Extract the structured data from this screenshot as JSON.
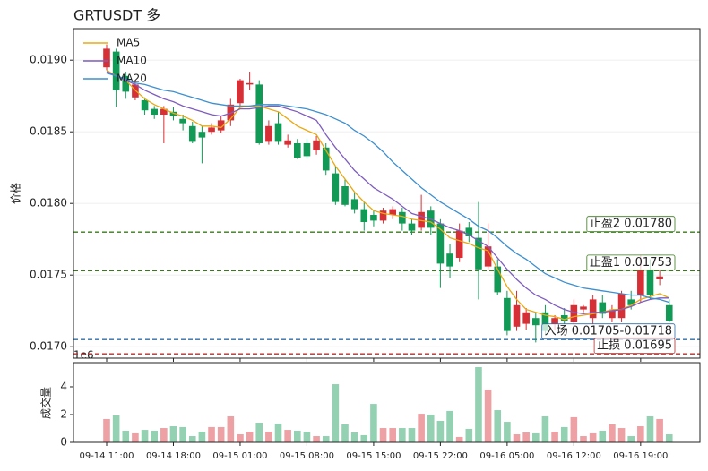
{
  "chart_data": [
    {
      "type": "candlestick",
      "title": "GRTUSDT  多",
      "ylabel": "价格",
      "categories": [
        "09-14 11:00",
        null,
        null,
        null,
        null,
        null,
        null,
        "09-14 18:00",
        null,
        null,
        null,
        null,
        null,
        null,
        "09-15 01:00",
        null,
        null,
        null,
        null,
        null,
        null,
        "09-15 08:00",
        null,
        null,
        null,
        null,
        null,
        null,
        "09-15 15:00",
        null,
        null,
        null,
        null,
        null,
        null,
        "09-15 22:00",
        null,
        null,
        null,
        null,
        null,
        null,
        "09-16 05:00",
        null,
        null,
        null,
        null,
        null,
        null,
        "09-16 12:00",
        null,
        null,
        null,
        null,
        null,
        null,
        "09-16 19:00",
        null,
        null,
        null
      ],
      "open": [
        0.01895,
        0.01906,
        0.01889,
        0.01874,
        0.01872,
        0.01866,
        0.01862,
        0.01864,
        0.01859,
        0.01854,
        0.0185,
        0.0185,
        0.01851,
        0.01858,
        0.0187,
        0.01883,
        0.01883,
        0.01843,
        0.01856,
        0.01841,
        0.01842,
        0.01842,
        0.01837,
        0.01839,
        0.01821,
        0.01812,
        0.01803,
        0.01796,
        0.01792,
        0.01788,
        0.01792,
        0.01794,
        0.01786,
        0.01783,
        0.01795,
        0.01786,
        0.01765,
        0.01762,
        0.01783,
        0.01776,
        0.01756,
        0.01756,
        0.01734,
        0.01714,
        0.01716,
        0.0172,
        0.01724,
        0.01716,
        0.01722,
        0.01717,
        0.01726,
        0.0172,
        0.01731,
        0.0172,
        0.0172,
        0.01733,
        0.01736,
        0.01754,
        0.01747,
        0.01729
      ],
      "high": [
        0.01911,
        0.01908,
        0.01892,
        0.01886,
        0.01874,
        0.01868,
        0.01868,
        0.01867,
        0.01862,
        0.01857,
        0.01854,
        0.01856,
        0.01861,
        0.01873,
        0.01887,
        0.01892,
        0.01886,
        0.01858,
        0.01864,
        0.01848,
        0.01845,
        0.01845,
        0.01847,
        0.01842,
        0.01826,
        0.01817,
        0.01808,
        0.01801,
        0.01795,
        0.01797,
        0.01798,
        0.01797,
        0.01789,
        0.01806,
        0.01798,
        0.01789,
        0.01772,
        0.01786,
        0.01787,
        0.01801,
        0.01786,
        0.01761,
        0.01739,
        0.01739,
        0.01727,
        0.01724,
        0.01729,
        0.01722,
        0.01727,
        0.01733,
        0.01729,
        0.01736,
        0.01736,
        0.01729,
        0.01739,
        0.01739,
        0.01764,
        0.01761,
        0.01754,
        0.01733
      ],
      "low": [
        0.01893,
        0.01867,
        0.01873,
        0.01872,
        0.01862,
        0.01859,
        0.01842,
        0.01858,
        0.01851,
        0.01842,
        0.01828,
        0.01848,
        0.01849,
        0.01854,
        0.01868,
        0.01879,
        0.01841,
        0.01841,
        0.01841,
        0.01839,
        0.01831,
        0.01831,
        0.01834,
        0.0182,
        0.01799,
        0.01798,
        0.01793,
        0.01781,
        0.01784,
        0.01786,
        0.01789,
        0.01781,
        0.01778,
        0.01781,
        0.01778,
        0.01741,
        0.01748,
        0.01759,
        0.01773,
        0.01733,
        0.01754,
        0.01736,
        0.01708,
        0.01711,
        0.01712,
        0.01703,
        0.01708,
        0.01712,
        0.01716,
        0.01714,
        0.01724,
        0.01716,
        0.0172,
        0.01717,
        0.01717,
        0.01726,
        0.01731,
        0.01733,
        0.01743,
        0.01717
      ],
      "close": [
        0.01908,
        0.01879,
        0.01878,
        0.01883,
        0.01865,
        0.01862,
        0.01866,
        0.01861,
        0.01856,
        0.01843,
        0.01846,
        0.01853,
        0.01858,
        0.01869,
        0.01886,
        0.01884,
        0.01842,
        0.01854,
        0.01843,
        0.01844,
        0.01832,
        0.01833,
        0.01844,
        0.01823,
        0.01801,
        0.01799,
        0.01796,
        0.01787,
        0.01788,
        0.01795,
        0.01796,
        0.01786,
        0.01781,
        0.01794,
        0.01783,
        0.01758,
        0.01756,
        0.01781,
        0.01777,
        0.01754,
        0.0177,
        0.01738,
        0.01711,
        0.01729,
        0.01724,
        0.01715,
        0.01711,
        0.0172,
        0.01718,
        0.01729,
        0.01728,
        0.01733,
        0.01723,
        0.01726,
        0.01737,
        0.01729,
        0.01754,
        0.01736,
        0.01749,
        0.01718
      ],
      "up_color": "#d62f35",
      "down_color": "#109a55",
      "series": [
        {
          "name": "MA5",
          "color": "#e8a913",
          "values": [
            0.01893,
            0.01889,
            0.01886,
            0.01879,
            0.01873,
            0.01869,
            0.01866,
            0.01863,
            0.01861,
            0.01858,
            0.01854,
            0.01854,
            0.01853,
            0.01859,
            0.01867,
            0.01868,
            0.01868,
            0.01866,
            0.01864,
            0.01859,
            0.01854,
            0.01851,
            0.01848,
            0.01837,
            0.01826,
            0.01817,
            0.01808,
            0.01801,
            0.01795,
            0.01793,
            0.01792,
            0.01791,
            0.01789,
            0.01788,
            0.01787,
            0.01782,
            0.01776,
            0.01774,
            0.01772,
            0.01769,
            0.01767,
            0.01754,
            0.01742,
            0.01733,
            0.01726,
            0.01724,
            0.01722,
            0.01721,
            0.01719,
            0.01721,
            0.01722,
            0.01723,
            0.01724,
            0.01726,
            0.01726,
            0.01729,
            0.01733,
            0.01735,
            0.01737,
            0.01734
          ]
        },
        {
          "name": "MA10",
          "color": "#7e5dbf",
          "values": [
            0.01892,
            0.01889,
            0.01886,
            0.01883,
            0.01879,
            0.01876,
            0.01873,
            0.01871,
            0.01868,
            0.01866,
            0.01864,
            0.01862,
            0.01861,
            0.01863,
            0.01866,
            0.01866,
            0.01867,
            0.01868,
            0.01868,
            0.01866,
            0.01864,
            0.01861,
            0.01858,
            0.01848,
            0.01839,
            0.01831,
            0.01823,
            0.01817,
            0.01811,
            0.01807,
            0.01803,
            0.01798,
            0.01793,
            0.01791,
            0.01789,
            0.01786,
            0.01783,
            0.01781,
            0.01778,
            0.01774,
            0.0177,
            0.01762,
            0.01754,
            0.01747,
            0.01741,
            0.01736,
            0.01733,
            0.01729,
            0.01726,
            0.01724,
            0.01723,
            0.01724,
            0.01724,
            0.01725,
            0.01726,
            0.01728,
            0.01731,
            0.01733,
            0.01734,
            0.01734
          ]
        },
        {
          "name": "MA20",
          "color": "#3d8fcf",
          "values": [
            0.01891,
            0.01889,
            0.01887,
            0.01884,
            0.01883,
            0.01881,
            0.01879,
            0.01878,
            0.01876,
            0.01874,
            0.01872,
            0.0187,
            0.01869,
            0.01868,
            0.01868,
            0.01868,
            0.01869,
            0.01869,
            0.01869,
            0.01868,
            0.01867,
            0.01866,
            0.01864,
            0.01862,
            0.01859,
            0.01856,
            0.01851,
            0.01847,
            0.01842,
            0.01836,
            0.01829,
            0.01823,
            0.01817,
            0.01811,
            0.01806,
            0.01801,
            0.01797,
            0.01793,
            0.01789,
            0.01784,
            0.01781,
            0.01776,
            0.0177,
            0.01765,
            0.01761,
            0.01756,
            0.01751,
            0.01748,
            0.01745,
            0.01743,
            0.01741,
            0.0174,
            0.01739,
            0.01738,
            0.01737,
            0.01736,
            0.01736,
            0.01734,
            0.01733,
            0.01731
          ]
        }
      ],
      "levels": [
        {
          "label": "止盈2 0.01780",
          "value": 0.0178,
          "color": "#3a7a1c"
        },
        {
          "label": "止盈1 0.01753",
          "value": 0.01753,
          "color": "#3a7a1c"
        },
        {
          "label": "入场 0.01705-0.01718",
          "value": 0.01705,
          "color": "#2e6ea8"
        },
        {
          "label": "止损 0.01695",
          "value": 0.01695,
          "color": "#b0302f"
        }
      ],
      "ylim": [
        0.01692,
        0.01922
      ],
      "yticks": [
        {
          "value": 0.017,
          "label": "0.0170"
        },
        0.0175,
        {
          "value": 0.018,
          "label": "0.0180"
        },
        0.0185,
        {
          "value": 0.019,
          "label": "0.0190"
        }
      ],
      "grid": true,
      "legend": "upper left"
    },
    {
      "type": "bar",
      "ylabel": "成交量",
      "offset_label": "1e6",
      "values": [
        1.68,
        1.94,
        0.84,
        0.65,
        0.9,
        0.84,
        1.03,
        1.16,
        1.1,
        0.45,
        0.77,
        1.1,
        1.1,
        1.87,
        0.58,
        0.77,
        1.42,
        0.77,
        1.35,
        0.9,
        0.84,
        0.77,
        0.45,
        0.45,
        4.19,
        1.29,
        0.71,
        0.52,
        2.77,
        1.03,
        1.03,
        1.03,
        1.03,
        2.06,
        2.0,
        1.55,
        2.26,
        0.39,
        0.97,
        5.42,
        3.8,
        2.32,
        1.48,
        0.58,
        0.71,
        0.65,
        1.87,
        0.77,
        1.1,
        1.81,
        0.45,
        0.65,
        0.84,
        1.29,
        1.03,
        0.45,
        1.16,
        1.87,
        1.68,
        0.58
      ],
      "ylim": [
        0,
        5.74
      ],
      "yticks": [
        0,
        2,
        4
      ],
      "grid": false
    }
  ]
}
